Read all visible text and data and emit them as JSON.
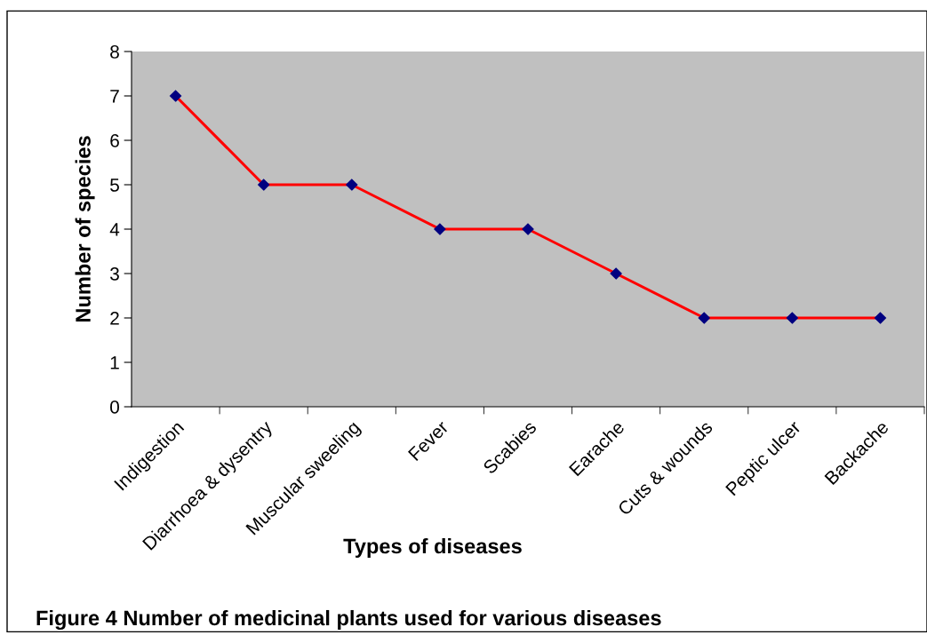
{
  "chart_data": {
    "type": "line",
    "xlabel": "Types of diseases",
    "ylabel": "Number of species",
    "categories": [
      "Indigestion",
      "Diarrhoea & dysentry",
      "Muscular sweeling",
      "Fever",
      "Scabies",
      "Earache",
      "Cuts & wounds",
      "Peptic ulcer",
      "Backache"
    ],
    "series": [
      {
        "color": "#ff0000",
        "values": [
          7,
          5,
          5,
          4,
          4,
          3,
          2,
          2,
          2
        ]
      }
    ],
    "ylim": [
      0,
      8
    ],
    "yticks": [
      0,
      1,
      2,
      3,
      4,
      5,
      6,
      7,
      8
    ],
    "marker": "diamond",
    "line_style": "solid",
    "grid": false,
    "legend": false,
    "annotations": [
      "Figure 4 Number of medicinal plants used for various diseases"
    ]
  }
}
